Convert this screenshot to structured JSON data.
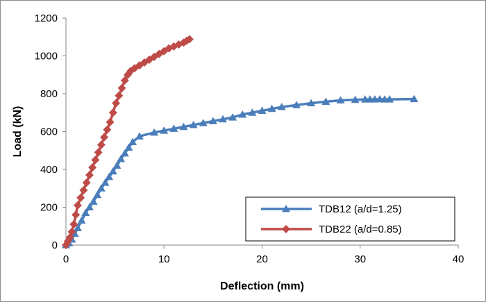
{
  "chart_data": {
    "type": "line",
    "title": "",
    "xlabel": "Deflection (mm)",
    "ylabel": "Load (kN)",
    "xlim": [
      0,
      40
    ],
    "ylim": [
      0,
      1200
    ],
    "xticks": [
      0,
      10,
      20,
      30,
      40
    ],
    "yticks": [
      0,
      200,
      400,
      600,
      800,
      1000,
      1200
    ],
    "grid": false,
    "legend_position": "bottom-right",
    "series": [
      {
        "name": "TDB12 (a/d=1.25)",
        "color": "#4a7ebb",
        "marker": "triangle",
        "x": [
          0.0,
          0.3,
          0.6,
          0.9,
          1.2,
          1.6,
          2.0,
          2.4,
          2.8,
          3.2,
          3.6,
          4.0,
          4.4,
          4.8,
          5.2,
          5.6,
          6.0,
          6.4,
          6.8,
          7.5,
          9.0,
          10.0,
          11.0,
          12.0,
          13.0,
          14.0,
          15.0,
          16.0,
          17.0,
          18.0,
          19.0,
          20.0,
          21.0,
          22.0,
          23.5,
          25.0,
          26.5,
          28.0,
          29.5,
          30.5,
          31.0,
          31.5,
          32.0,
          32.5,
          33.0,
          35.5
        ],
        "y": [
          0,
          10,
          30,
          60,
          90,
          130,
          170,
          200,
          230,
          265,
          300,
          330,
          360,
          390,
          420,
          455,
          485,
          515,
          545,
          575,
          595,
          605,
          615,
          625,
          635,
          645,
          655,
          665,
          675,
          690,
          700,
          710,
          720,
          730,
          740,
          750,
          758,
          765,
          768,
          770,
          770,
          770,
          771,
          770,
          770,
          772
        ]
      },
      {
        "name": "TDB22 (a/d=0.85)",
        "color": "#be4b48",
        "marker": "diamond",
        "x": [
          0.0,
          0.2,
          0.4,
          0.6,
          0.8,
          1.0,
          1.2,
          1.5,
          1.8,
          2.1,
          2.4,
          2.7,
          3.0,
          3.3,
          3.6,
          3.9,
          4.2,
          4.5,
          4.8,
          5.1,
          5.4,
          5.7,
          6.0,
          6.3,
          6.6,
          7.0,
          7.5,
          8.0,
          8.5,
          9.0,
          9.5,
          10.0,
          10.5,
          11.0,
          11.5,
          12.0,
          12.3,
          12.6
        ],
        "y": [
          0,
          20,
          40,
          70,
          110,
          160,
          210,
          250,
          290,
          330,
          370,
          410,
          450,
          490,
          530,
          570,
          610,
          650,
          700,
          750,
          790,
          830,
          870,
          900,
          920,
          935,
          950,
          965,
          980,
          995,
          1010,
          1025,
          1040,
          1050,
          1060,
          1070,
          1080,
          1088
        ]
      }
    ]
  }
}
